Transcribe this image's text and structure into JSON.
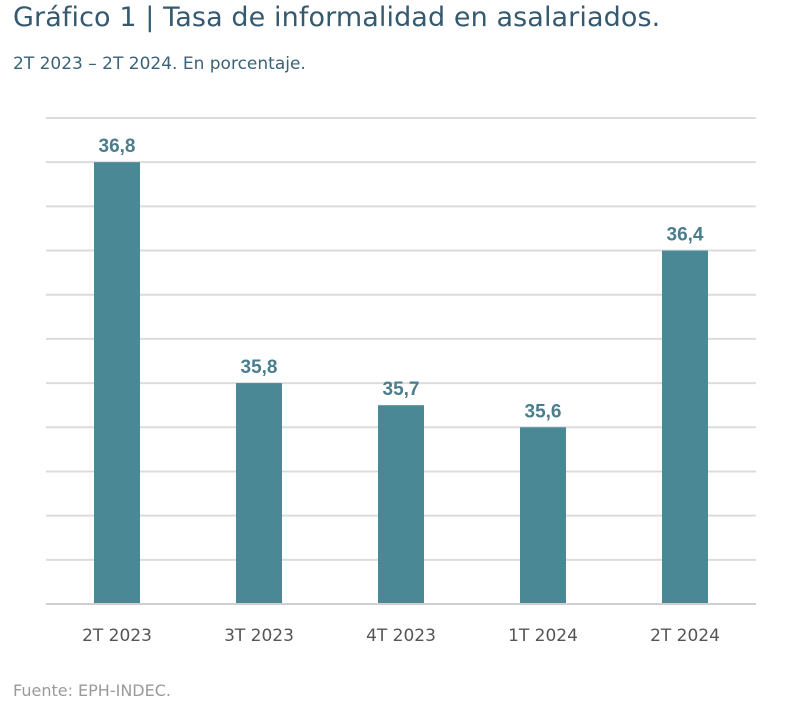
{
  "chart_data": {
    "type": "bar",
    "title": "Gráfico 1 | Tasa de informalidad en asalariados.",
    "subtitle": "2T 2023 – 2T 2024. En porcentaje.",
    "source": "Fuente: EPH-INDEC.",
    "categories": [
      "2T 2023",
      "3T 2023",
      "4T 2023",
      "1T 2024",
      "2T 2024"
    ],
    "values": [
      36.8,
      35.8,
      35.7,
      35.6,
      36.4
    ],
    "data_labels": [
      "36,8",
      "35,8",
      "35,7",
      "35,6",
      "36,4"
    ],
    "xlabel": "",
    "ylabel": "",
    "ylim": [
      34.8,
      37.0
    ],
    "grid_step": 0.2,
    "grid": true,
    "y_tick_labels_visible": false,
    "legend": "none",
    "bar_color": "#4a8896",
    "label_color": "#4a7e8c"
  }
}
